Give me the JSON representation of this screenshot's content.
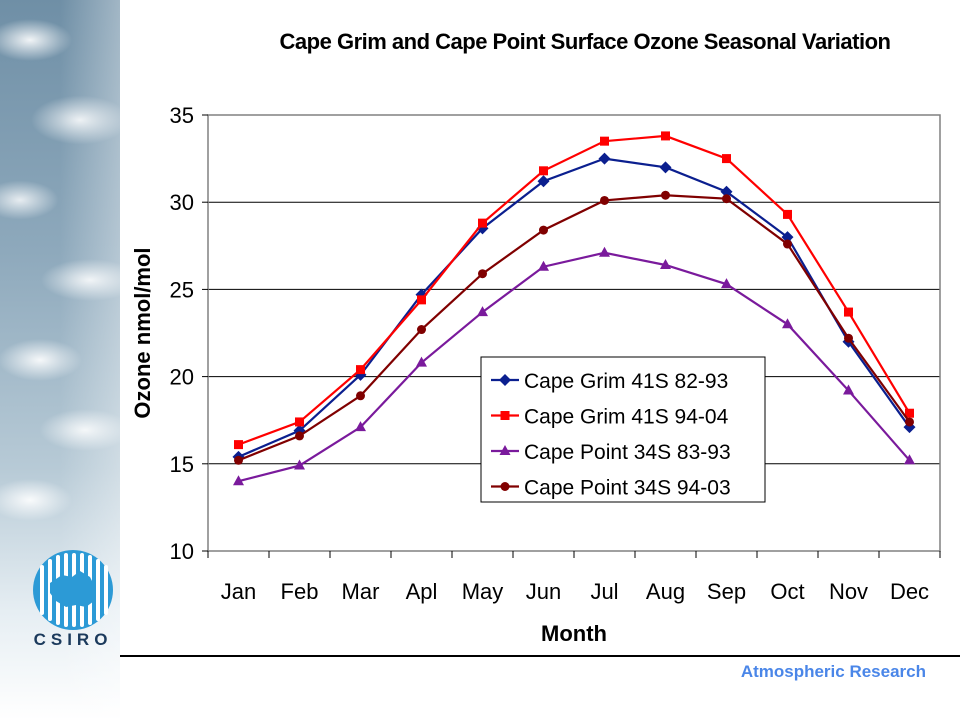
{
  "page": {
    "footer": "Atmospheric Research",
    "logo_text": "CSIRO"
  },
  "chart_data": {
    "type": "line",
    "title": "Cape Grim and Cape Point Surface Ozone Seasonal Variation",
    "xlabel": "Month",
    "ylabel": "Ozone nmol/mol",
    "ylim": [
      10,
      35
    ],
    "yticks": [
      10,
      15,
      20,
      25,
      30,
      35
    ],
    "grid": "horizontal",
    "legend_position": "center-lower",
    "categories": [
      "Jan",
      "Feb",
      "Mar",
      "Apl",
      "May",
      "Jun",
      "Jul",
      "Aug",
      "Sep",
      "Oct",
      "Nov",
      "Dec"
    ],
    "series": [
      {
        "name": "Cape Grim 41S 82-93",
        "color": "#0b1f8f",
        "marker": "diamond",
        "values": [
          15.4,
          16.9,
          20.1,
          24.7,
          28.5,
          31.2,
          32.5,
          32.0,
          30.6,
          28.0,
          22.0,
          17.1
        ]
      },
      {
        "name": "Cape Grim 41S 94-04",
        "color": "#ff0000",
        "marker": "square",
        "values": [
          16.1,
          17.4,
          20.4,
          24.4,
          28.8,
          31.8,
          33.5,
          33.8,
          32.5,
          29.3,
          23.7,
          17.9
        ]
      },
      {
        "name": "Cape Point 34S 83-93",
        "color": "#7a1a9c",
        "marker": "triangle",
        "values": [
          14.0,
          14.9,
          17.1,
          20.8,
          23.7,
          26.3,
          27.1,
          26.4,
          25.3,
          23.0,
          19.2,
          15.2
        ]
      },
      {
        "name": "Cape Point 34S 94-03",
        "color": "#800000",
        "marker": "circle",
        "values": [
          15.2,
          16.6,
          18.9,
          22.7,
          25.9,
          28.4,
          30.1,
          30.4,
          30.2,
          27.6,
          22.2,
          17.4
        ]
      }
    ]
  }
}
